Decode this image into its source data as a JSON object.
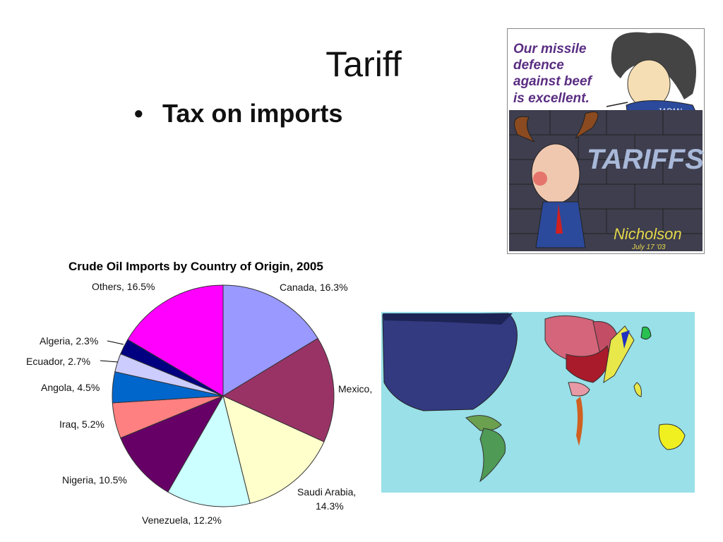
{
  "slide": {
    "title": "Tariff",
    "bullet": "Tax on imports"
  },
  "cartoon": {
    "speech": [
      "Our missile",
      "defence",
      "against beef",
      "is excellent."
    ],
    "wall_text": "TARIFFS",
    "flag_label": "JAPAN",
    "signature": "Nicholson",
    "date_note": "July 17 '03"
  },
  "chart_data": {
    "type": "pie",
    "title": "Crude Oil Imports by Country of Origin, 2005",
    "slices": [
      {
        "label": "Canada, 16.3%",
        "value": 16.3,
        "color": "#9999ff"
      },
      {
        "label": "Mexico,",
        "value": 15.5,
        "color": "#993366"
      },
      {
        "label": "Saudi Arabia, 14.3%",
        "value": 14.3,
        "color": "#ffffcc"
      },
      {
        "label": "Venezuela, 12.2%",
        "value": 12.2,
        "color": "#ccffff"
      },
      {
        "label": "Nigeria, 10.5%",
        "value": 10.5,
        "color": "#660066"
      },
      {
        "label": "Iraq, 5.2%",
        "value": 5.2,
        "color": "#ff8080"
      },
      {
        "label": "Angola, 4.5%",
        "value": 4.5,
        "color": "#0066cc"
      },
      {
        "label": "Ecuador, 2.7%",
        "value": 2.7,
        "color": "#ccccff"
      },
      {
        "label": "Algeria, 2.3%",
        "value": 2.3,
        "color": "#000080"
      },
      {
        "label": "Others, 16.5%",
        "value": 16.5,
        "color": "#ff00ff"
      }
    ]
  },
  "map": {
    "ocean_color": "#99e0e8"
  }
}
